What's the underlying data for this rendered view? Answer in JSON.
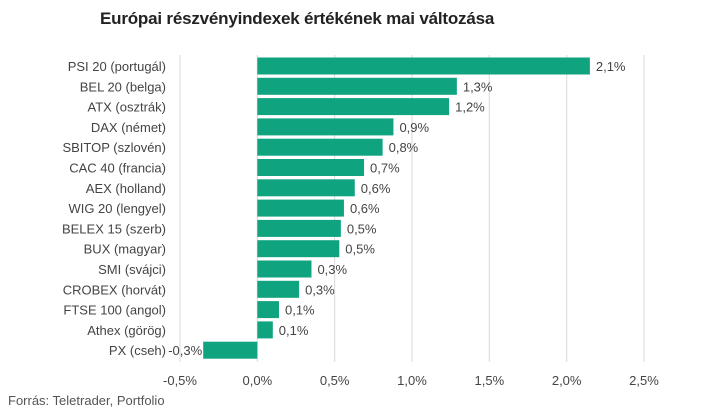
{
  "chart_data": {
    "type": "bar",
    "orientation": "horizontal",
    "title": "Európai részvényindexek értékének mai változása",
    "source": "Forrás: Teletrader, Portfolio",
    "categories": [
      "PSI 20 (portugál)",
      "BEL 20 (belga)",
      "ATX (osztrák)",
      "DAX (német)",
      "SBITOP (szlovén)",
      "CAC 40 (francia)",
      "AEX (holland)",
      "WIG 20 (lengyel)",
      "BELEX 15 (szerb)",
      "BUX (magyar)",
      "SMI (svájci)",
      "CROBEX (horvát)",
      "FTSE 100 (angol)",
      "Athex (görög)",
      "PX (cseh)"
    ],
    "values": [
      2.15,
      1.29,
      1.24,
      0.88,
      0.81,
      0.69,
      0.63,
      0.56,
      0.54,
      0.53,
      0.35,
      0.27,
      0.14,
      0.1,
      -0.35
    ],
    "data_labels": [
      "2,1%",
      "1,3%",
      "1,2%",
      "0,9%",
      "0,8%",
      "0,7%",
      "0,6%",
      "0,6%",
      "0,5%",
      "0,5%",
      "0,3%",
      "0,3%",
      "0,1%",
      "0,1%",
      "-0,3%"
    ],
    "xlim": [
      -0.5,
      2.5
    ],
    "xticks": [
      -0.5,
      0,
      0.5,
      1.0,
      1.5,
      2.0,
      2.5
    ],
    "xtick_labels": [
      "-0,5%",
      "0,0%",
      "0,5%",
      "1,0%",
      "1,5%",
      "2,0%",
      "2,5%"
    ],
    "grid": "vertical",
    "bar_color": "#10a37f"
  }
}
